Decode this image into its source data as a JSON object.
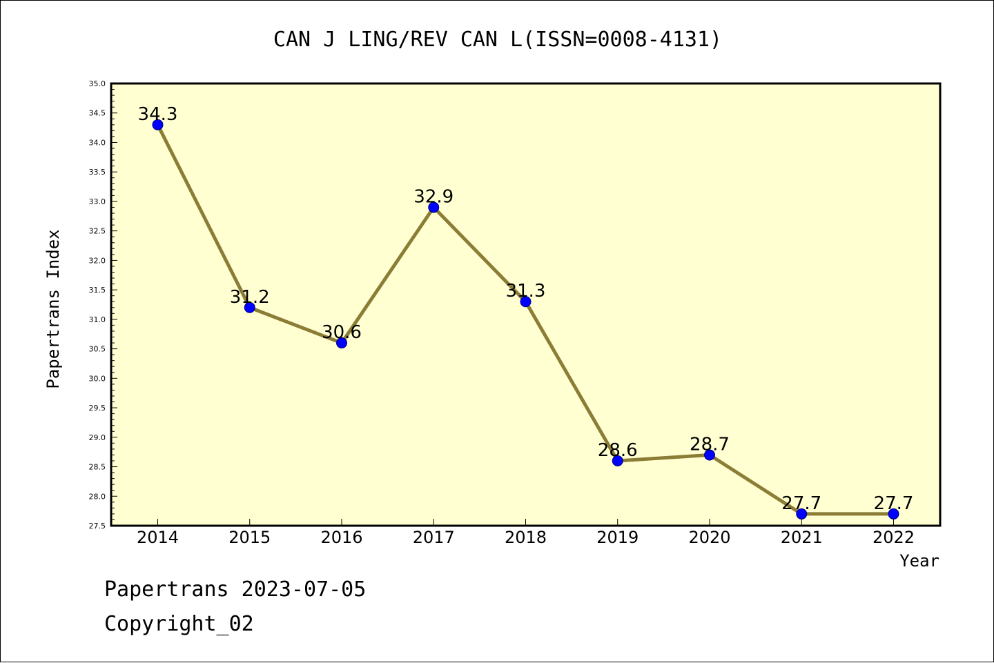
{
  "chart_data": {
    "type": "line",
    "title": "CAN J LING/REV CAN L(ISSN=0008-4131)",
    "xlabel": "Year",
    "ylabel": "Papertrans Index",
    "categories": [
      "2014",
      "2015",
      "2016",
      "2017",
      "2018",
      "2019",
      "2020",
      "2021",
      "2022"
    ],
    "values": [
      34.3,
      31.2,
      30.6,
      32.9,
      31.3,
      28.6,
      28.7,
      27.7,
      27.7
    ],
    "data_labels": [
      "34.3",
      "31.2",
      "30.6",
      "32.9",
      "31.3",
      "28.6",
      "28.7",
      "27.7",
      "27.7"
    ],
    "ylim": [
      27.5,
      35.0
    ],
    "yticks": [
      "27.5",
      "28.0",
      "28.5",
      "29.0",
      "29.5",
      "30.0",
      "30.5",
      "31.0",
      "31.5",
      "32.0",
      "32.5",
      "33.0",
      "33.5",
      "34.0",
      "34.5",
      "35.0"
    ],
    "grid": false,
    "colors": {
      "plot_background": "#ffffd2",
      "line": "#8b7d35",
      "marker": "#0000ff"
    }
  },
  "footer": {
    "line1": "Papertrans 2023-07-05",
    "line2": "Copyright_02"
  }
}
